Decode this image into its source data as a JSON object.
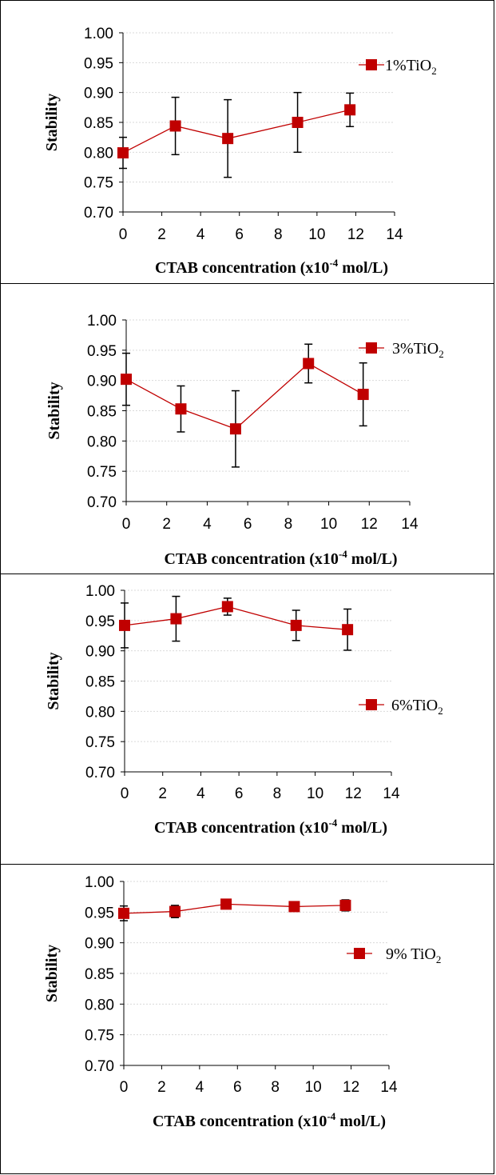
{
  "chart_data": [
    {
      "type": "line",
      "xlabel": "CTAB concentration (x10",
      "xlabel_sup": "-4",
      "xlabel_tail": " mol/L)",
      "ylabel": "Stability",
      "xlim": [
        0,
        14
      ],
      "ylim": [
        0.7,
        1.0
      ],
      "x_ticks": [
        "0",
        "2",
        "4",
        "6",
        "8",
        "10",
        "12",
        "14"
      ],
      "y_ticks": [
        "0.70",
        "0.75",
        "0.80",
        "0.85",
        "0.90",
        "0.95",
        "1.00"
      ],
      "grid": true,
      "legend_position": "top-right",
      "series": [
        {
          "name": "1%TiO",
          "name_sub": "2",
          "color": "#C00000",
          "x": [
            0,
            2.7,
            5.4,
            9.0,
            11.7
          ],
          "y": [
            0.799,
            0.844,
            0.823,
            0.85,
            0.871
          ],
          "error": [
            0.026,
            0.048,
            0.065,
            0.05,
            0.028
          ]
        }
      ]
    },
    {
      "type": "line",
      "xlabel": "CTAB concentration (x10",
      "xlabel_sup": "-4",
      "xlabel_tail": " mol/L)",
      "ylabel": "Stability",
      "xlim": [
        0,
        14
      ],
      "ylim": [
        0.7,
        1.0
      ],
      "x_ticks": [
        "0",
        "2",
        "4",
        "6",
        "8",
        "10",
        "12",
        "14"
      ],
      "y_ticks": [
        "0.70",
        "0.75",
        "0.80",
        "0.85",
        "0.90",
        "0.95",
        "1.00"
      ],
      "grid": true,
      "legend_position": "top-right",
      "series": [
        {
          "name": "3%TiO",
          "name_sub": "2",
          "color": "#C00000",
          "x": [
            0,
            2.7,
            5.4,
            9.0,
            11.7
          ],
          "y": [
            0.902,
            0.853,
            0.82,
            0.928,
            0.877
          ],
          "error": [
            0.043,
            0.038,
            0.063,
            0.032,
            0.052
          ]
        }
      ]
    },
    {
      "type": "line",
      "xlabel": "CTAB concentration (x10",
      "xlabel_sup": "-4",
      "xlabel_tail": " mol/L)",
      "ylabel": "Stability",
      "xlim": [
        0,
        14
      ],
      "ylim": [
        0.7,
        1.0
      ],
      "x_ticks": [
        "0",
        "2",
        "4",
        "6",
        "8",
        "10",
        "12",
        "14"
      ],
      "y_ticks": [
        "0.70",
        "0.75",
        "0.80",
        "0.85",
        "0.90",
        "0.95",
        "1.00"
      ],
      "grid": true,
      "legend_position": "right",
      "series": [
        {
          "name": "6%TiO",
          "name_sub": "2",
          "color": "#C00000",
          "x": [
            0,
            2.7,
            5.4,
            9.0,
            11.7
          ],
          "y": [
            0.942,
            0.953,
            0.973,
            0.942,
            0.935
          ],
          "error": [
            0.037,
            0.037,
            0.014,
            0.025,
            0.034
          ]
        }
      ]
    },
    {
      "type": "line",
      "xlabel": "CTAB concentration (x10",
      "xlabel_sup": "-4",
      "xlabel_tail": " mol/L)",
      "ylabel": "Stability",
      "xlim": [
        0,
        14
      ],
      "ylim": [
        0.7,
        1.0
      ],
      "x_ticks": [
        "0",
        "2",
        "4",
        "6",
        "8",
        "10",
        "12",
        "14"
      ],
      "y_ticks": [
        "0.70",
        "0.75",
        "0.80",
        "0.85",
        "0.90",
        "0.95",
        "1.00"
      ],
      "grid": true,
      "legend_position": "right",
      "series": [
        {
          "name": "9% TiO",
          "name_sub": "2",
          "color": "#C00000",
          "x": [
            0,
            2.7,
            5.4,
            9.0,
            11.7
          ],
          "y": [
            0.948,
            0.951,
            0.963,
            0.959,
            0.961
          ],
          "error": [
            0.012,
            0.01,
            0.006,
            0.007,
            0.009
          ]
        }
      ]
    }
  ]
}
